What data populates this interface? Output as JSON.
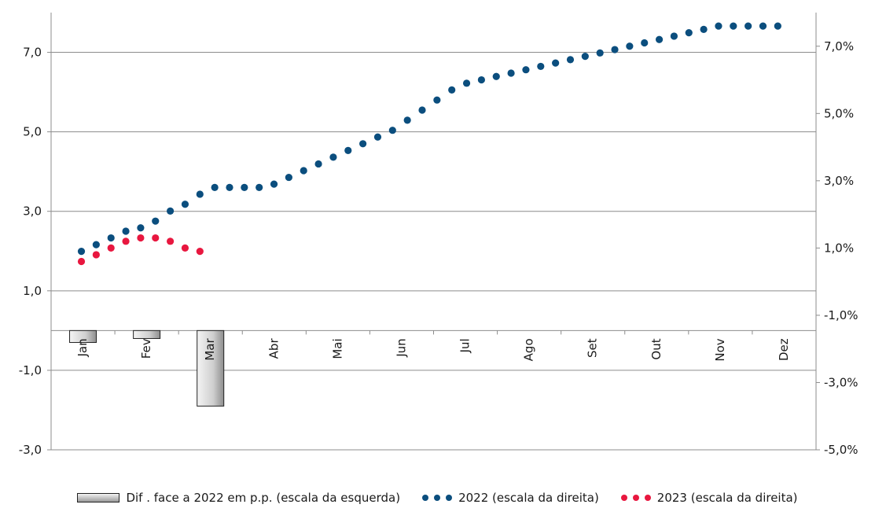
{
  "chart_data": {
    "type": "bar+scatter",
    "months": [
      "Jan",
      "Fev",
      "Mar",
      "Abr",
      "Mai",
      "Jun",
      "Jul",
      "Ago",
      "Set",
      "Out",
      "Nov",
      "Dez"
    ],
    "left_axis": {
      "ylim": [
        -3.0,
        8.0
      ],
      "ticks": [
        "7,0",
        "5,0",
        "3,0",
        "1,0",
        "-1,0",
        "-3,0"
      ],
      "tick_values": [
        7,
        5,
        3,
        1,
        -1,
        -3
      ]
    },
    "right_axis": {
      "ylim": [
        -5.0,
        8.0
      ],
      "ticks": [
        "7,0%",
        "5,0%",
        "3,0%",
        "1,0%",
        "-1,0%",
        "-3,0%",
        "-5,0%"
      ],
      "tick_values": [
        7,
        5,
        3,
        1,
        -1,
        -3,
        -5
      ]
    },
    "series": [
      {
        "name": "Dif . face a 2022 em p.p. (escala da esquerda)",
        "type": "bar",
        "axis": "left",
        "categories": [
          "Jan",
          "Fev",
          "Mar"
        ],
        "values": [
          -0.3,
          -0.2,
          -1.9
        ]
      },
      {
        "name": "2022 (escala da direita)",
        "type": "scatter",
        "axis": "right",
        "color": "#0b4e7e",
        "values": [
          0.9,
          1.1,
          1.3,
          1.5,
          1.6,
          1.8,
          2.1,
          2.3,
          2.6,
          2.8,
          2.8,
          2.8,
          2.8,
          2.9,
          3.1,
          3.3,
          3.5,
          3.7,
          3.9,
          4.1,
          4.3,
          4.5,
          4.8,
          5.1,
          5.4,
          5.7,
          5.9,
          6.0,
          6.1,
          6.2,
          6.3,
          6.4,
          6.5,
          6.6,
          6.7,
          6.8,
          6.9,
          7.0,
          7.1,
          7.2,
          7.3,
          7.4,
          7.5,
          7.6,
          7.6,
          7.6,
          7.6,
          7.6
        ]
      },
      {
        "name": "2023 (escala da direita)",
        "type": "scatter",
        "axis": "right",
        "color": "#e8173f",
        "values": [
          0.6,
          0.8,
          1.0,
          1.2,
          1.3,
          1.3,
          1.2,
          1.0,
          0.9
        ]
      }
    ],
    "grid": true,
    "legend_position": "bottom"
  }
}
